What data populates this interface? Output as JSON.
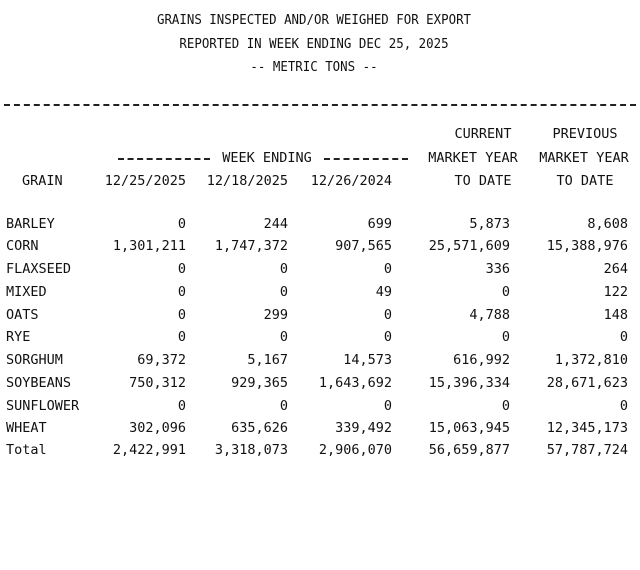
{
  "report": {
    "title_line1": "GRAINS INSPECTED AND/OR WEIGHED FOR EXPORT",
    "title_line2": "REPORTED IN WEEK ENDING DEC 25, 2025",
    "title_line3": "-- METRIC TONS --"
  },
  "columns": {
    "grain": "GRAIN",
    "week_ending": "WEEK ENDING",
    "week1": "12/25/2025",
    "week2": "12/18/2025",
    "week3": "12/26/2024",
    "current_line1": "CURRENT",
    "current_line2": "MARKET YEAR",
    "current_line3": "TO DATE",
    "previous_line1": "PREVIOUS",
    "previous_line2": "MARKET YEAR",
    "previous_line3": "TO DATE"
  },
  "rows": [
    {
      "grain": "BARLEY",
      "w1": "0",
      "w2": "244",
      "w3": "699",
      "current": "5,873",
      "previous": "8,608"
    },
    {
      "grain": "CORN",
      "w1": "1,301,211",
      "w2": "1,747,372",
      "w3": "907,565",
      "current": "25,571,609",
      "previous": "15,388,976"
    },
    {
      "grain": "FLAXSEED",
      "w1": "0",
      "w2": "0",
      "w3": "0",
      "current": "336",
      "previous": "264"
    },
    {
      "grain": "MIXED",
      "w1": "0",
      "w2": "0",
      "w3": "49",
      "current": "0",
      "previous": "122"
    },
    {
      "grain": "OATS",
      "w1": "0",
      "w2": "299",
      "w3": "0",
      "current": "4,788",
      "previous": "148"
    },
    {
      "grain": "RYE",
      "w1": "0",
      "w2": "0",
      "w3": "0",
      "current": "0",
      "previous": "0"
    },
    {
      "grain": "SORGHUM",
      "w1": "69,372",
      "w2": "5,167",
      "w3": "14,573",
      "current": "616,992",
      "previous": "1,372,810"
    },
    {
      "grain": "SOYBEANS",
      "w1": "750,312",
      "w2": "929,365",
      "w3": "1,643,692",
      "current": "15,396,334",
      "previous": "28,671,623"
    },
    {
      "grain": "SUNFLOWER",
      "w1": "0",
      "w2": "0",
      "w3": "0",
      "current": "0",
      "previous": "0"
    },
    {
      "grain": "WHEAT",
      "w1": "302,096",
      "w2": "635,626",
      "w3": "339,492",
      "current": "15,063,945",
      "previous": "12,345,173"
    },
    {
      "grain": "Total",
      "w1": "2,422,991",
      "w2": "3,318,073",
      "w3": "2,906,070",
      "current": "56,659,877",
      "previous": "57,787,724"
    }
  ]
}
